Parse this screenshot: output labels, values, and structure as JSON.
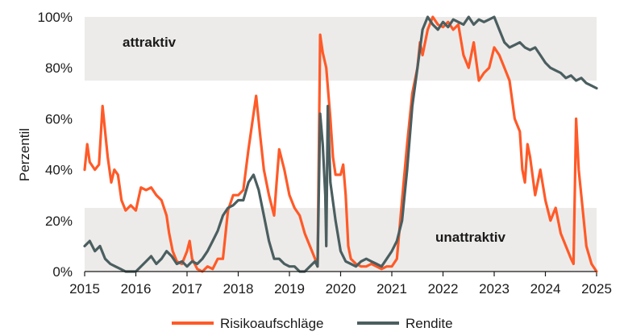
{
  "chart_data": {
    "type": "line",
    "ylabel": "Perzentil",
    "ylim": [
      0,
      100
    ],
    "xlim": [
      2015,
      2025
    ],
    "y_ticks": [
      "0%",
      "20%",
      "40%",
      "60%",
      "80%",
      "100%"
    ],
    "y_tick_values": [
      0,
      20,
      40,
      60,
      80,
      100
    ],
    "x_ticks": [
      "2015",
      "2016",
      "2017",
      "2018",
      "2019",
      "2020",
      "2021",
      "2022",
      "2023",
      "2024",
      "2025"
    ],
    "x_tick_values": [
      2015,
      2016,
      2017,
      2018,
      2019,
      2020,
      2021,
      2022,
      2023,
      2024,
      2025
    ],
    "bands": [
      {
        "label": "attraktiv",
        "from": 75,
        "to": 100,
        "color": "#edebe9"
      },
      {
        "label": "unattraktiv",
        "from": 0,
        "to": 25,
        "color": "#edebe9"
      }
    ],
    "series": [
      {
        "name": "Risikoaufschläge",
        "color": "#ff5a28",
        "x": [
          2015.0,
          2015.05,
          2015.1,
          2015.2,
          2015.28,
          2015.35,
          2015.45,
          2015.52,
          2015.58,
          2015.65,
          2015.72,
          2015.8,
          2015.9,
          2016.0,
          2016.1,
          2016.2,
          2016.3,
          2016.4,
          2016.5,
          2016.6,
          2016.65,
          2016.72,
          2016.8,
          2016.9,
          2017.0,
          2017.05,
          2017.1,
          2017.2,
          2017.3,
          2017.4,
          2017.5,
          2017.6,
          2017.7,
          2017.8,
          2017.9,
          2018.0,
          2018.1,
          2018.2,
          2018.3,
          2018.35,
          2018.42,
          2018.5,
          2018.6,
          2018.7,
          2018.75,
          2018.8,
          2018.9,
          2019.0,
          2019.1,
          2019.2,
          2019.3,
          2019.4,
          2019.5,
          2019.55,
          2019.6,
          2019.65,
          2019.72,
          2019.8,
          2019.85,
          2019.9,
          2020.0,
          2020.05,
          2020.1,
          2020.15,
          2020.2,
          2020.3,
          2020.4,
          2020.5,
          2020.6,
          2020.7,
          2020.8,
          2020.9,
          2021.0,
          2021.1,
          2021.2,
          2021.3,
          2021.4,
          2021.5,
          2021.55,
          2021.6,
          2021.7,
          2021.8,
          2021.9,
          2022.0,
          2022.1,
          2022.2,
          2022.3,
          2022.4,
          2022.5,
          2022.6,
          2022.7,
          2022.8,
          2022.9,
          2023.0,
          2023.1,
          2023.2,
          2023.3,
          2023.4,
          2023.5,
          2023.55,
          2023.6,
          2023.65,
          2023.7,
          2023.8,
          2023.9,
          2024.0,
          2024.1,
          2024.2,
          2024.3,
          2024.4,
          2024.5,
          2024.55,
          2024.6,
          2024.65,
          2024.7,
          2024.8,
          2024.9,
          2025.0
        ],
        "values": [
          40,
          50,
          43,
          40,
          42,
          65,
          45,
          35,
          40,
          38,
          28,
          24,
          26,
          24,
          33,
          32,
          33,
          30,
          28,
          22,
          15,
          8,
          4,
          3,
          8,
          12,
          5,
          1,
          0,
          2,
          1,
          5,
          5,
          24,
          30,
          30,
          32,
          48,
          62,
          69,
          55,
          40,
          30,
          22,
          35,
          48,
          40,
          30,
          25,
          22,
          15,
          10,
          5,
          2,
          93,
          86,
          80,
          60,
          45,
          38,
          38,
          42,
          30,
          10,
          5,
          3,
          2,
          2,
          3,
          2,
          1,
          2,
          2,
          5,
          28,
          50,
          70,
          80,
          90,
          85,
          95,
          100,
          97,
          96,
          98,
          95,
          97,
          85,
          80,
          90,
          75,
          78,
          80,
          88,
          85,
          80,
          75,
          60,
          55,
          40,
          35,
          50,
          45,
          30,
          40,
          28,
          20,
          25,
          15,
          10,
          5,
          3,
          60,
          40,
          30,
          10,
          3,
          0
        ]
      },
      {
        "name": "Rendite",
        "color": "#4b5e60",
        "x": [
          2015.0,
          2015.1,
          2015.2,
          2015.3,
          2015.4,
          2015.5,
          2015.6,
          2015.7,
          2015.8,
          2015.9,
          2016.0,
          2016.1,
          2016.2,
          2016.3,
          2016.4,
          2016.5,
          2016.6,
          2016.7,
          2016.8,
          2016.9,
          2017.0,
          2017.1,
          2017.2,
          2017.3,
          2017.4,
          2017.5,
          2017.6,
          2017.7,
          2017.8,
          2017.9,
          2018.0,
          2018.1,
          2018.2,
          2018.3,
          2018.4,
          2018.5,
          2018.6,
          2018.7,
          2018.8,
          2018.9,
          2019.0,
          2019.1,
          2019.2,
          2019.3,
          2019.4,
          2019.5,
          2019.55,
          2019.6,
          2019.65,
          2019.7,
          2019.72,
          2019.75,
          2019.8,
          2019.9,
          2020.0,
          2020.1,
          2020.2,
          2020.3,
          2020.4,
          2020.5,
          2020.6,
          2020.7,
          2020.8,
          2020.9,
          2021.0,
          2021.1,
          2021.2,
          2021.3,
          2021.4,
          2021.5,
          2021.6,
          2021.7,
          2021.8,
          2021.9,
          2022.0,
          2022.1,
          2022.2,
          2022.3,
          2022.4,
          2022.5,
          2022.6,
          2022.7,
          2022.8,
          2022.9,
          2023.0,
          2023.1,
          2023.2,
          2023.3,
          2023.4,
          2023.5,
          2023.6,
          2023.7,
          2023.8,
          2023.9,
          2024.0,
          2024.1,
          2024.2,
          2024.3,
          2024.4,
          2024.5,
          2024.6,
          2024.7,
          2024.8,
          2024.9,
          2025.0
        ],
        "values": [
          10,
          12,
          8,
          10,
          5,
          3,
          2,
          1,
          0,
          0,
          0,
          2,
          4,
          6,
          3,
          5,
          8,
          6,
          3,
          4,
          2,
          4,
          3,
          5,
          8,
          12,
          16,
          22,
          25,
          26,
          28,
          28,
          35,
          38,
          32,
          22,
          12,
          5,
          5,
          3,
          2,
          2,
          0,
          0,
          2,
          4,
          2,
          62,
          50,
          30,
          10,
          65,
          35,
          20,
          8,
          4,
          3,
          2,
          4,
          5,
          4,
          3,
          2,
          5,
          8,
          12,
          20,
          40,
          65,
          80,
          95,
          100,
          97,
          95,
          98,
          96,
          99,
          98,
          97,
          100,
          97,
          99,
          98,
          99,
          100,
          95,
          90,
          88,
          89,
          90,
          88,
          87,
          88,
          85,
          82,
          80,
          79,
          78,
          76,
          77,
          75,
          76,
          74,
          73,
          72
        ]
      }
    ],
    "legend": {
      "position": "bottom-center"
    }
  }
}
